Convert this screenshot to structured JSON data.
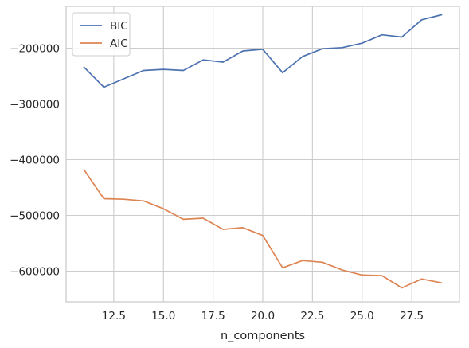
{
  "chart_data": {
    "type": "line",
    "title": "",
    "xlabel": "n_components",
    "ylabel": "",
    "xlim": [
      10.1,
      29.9
    ],
    "ylim": [
      -655000,
      -125000
    ],
    "grid": true,
    "legend": {
      "placement": "upper-left"
    },
    "x_ticks": [
      12.5,
      15.0,
      17.5,
      20.0,
      22.5,
      25.0,
      27.5
    ],
    "x_tick_labels": [
      "12.5",
      "15.0",
      "17.5",
      "20.0",
      "22.5",
      "25.0",
      "27.5"
    ],
    "y_ticks": [
      -200000,
      -300000,
      -400000,
      -500000,
      -600000
    ],
    "y_tick_labels": [
      "−200000",
      "−300000",
      "−400000",
      "−500000",
      "−600000"
    ],
    "x": [
      11,
      12,
      13,
      14,
      15,
      16,
      17,
      18,
      19,
      20,
      21,
      22,
      23,
      24,
      25,
      26,
      27,
      28,
      29
    ],
    "series": [
      {
        "name": "BIC",
        "color": "#4c72b0",
        "values": [
          -234000,
          -270000,
          -255000,
          -240000,
          -238000,
          -240000,
          -221000,
          -225000,
          -205000,
          -202000,
          -244000,
          -215000,
          -201000,
          -199000,
          -191000,
          -176000,
          -180000,
          -149000,
          -140000
        ]
      },
      {
        "name": "AIC",
        "color": "#dd8452",
        "values": [
          -418000,
          -470000,
          -471000,
          -474000,
          -488000,
          -507000,
          -505000,
          -525000,
          -522000,
          -536000,
          -594000,
          -581000,
          -584000,
          -598000,
          -607000,
          -608000,
          -630000,
          -614000,
          -621000
        ]
      }
    ]
  },
  "style": {
    "axes_edge_color": "#cccccc",
    "grid_color": "#cccccc",
    "background": "#ffffff"
  }
}
